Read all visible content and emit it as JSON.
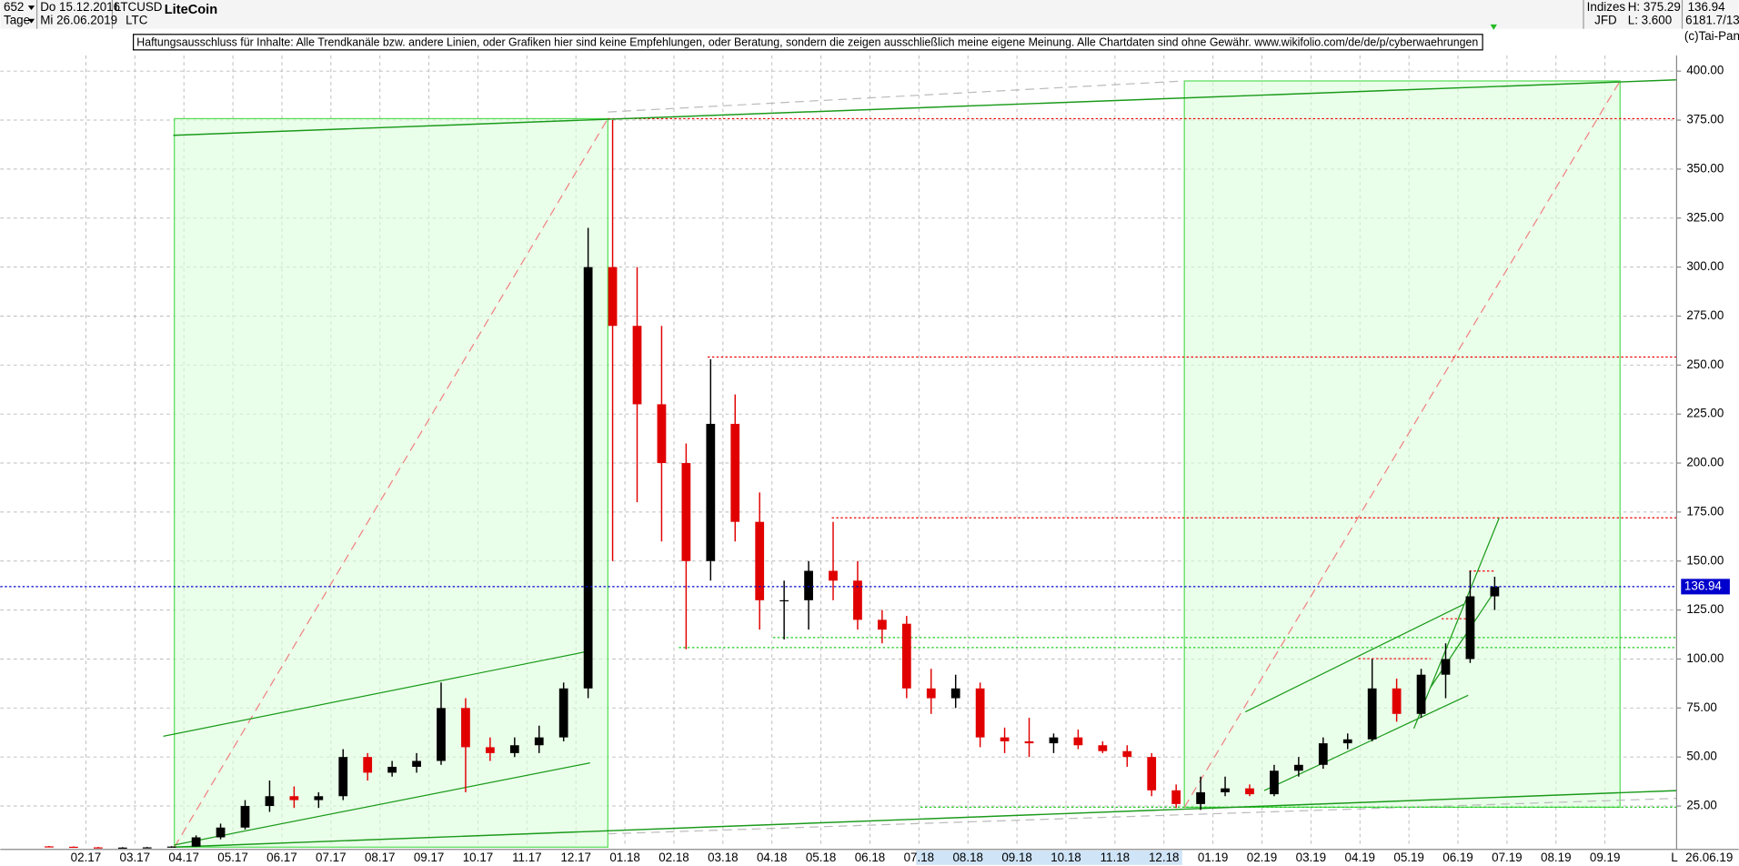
{
  "header": {
    "period": "652",
    "start_date": "Do 15.12.2016",
    "symbol": "LTCUSD",
    "name": "LiteCoin",
    "interval": "Tage",
    "end_date": "Mi 26.06.2019",
    "symbol_short": "LTC",
    "group": "Indizes",
    "source": "JFD",
    "high": "H: 375.29",
    "low": "L: 3.600",
    "last": "136.94",
    "stats": "6181.7/13",
    "copyright": "(c)Tai-Pan",
    "disclaimer": "Haftungsausschluss für Inhalte: Alle Trendkanäle bzw. andere Linien, oder Grafiken hier sind keine Empfehlungen, oder Beratung, sondern die zeigen ausschließlich meine eigene Meinung. Alle Chartdaten sind ohne Gewähr.  www.wikifolio.com/de/de/p/cyberwaehrungen"
  },
  "chart_data": {
    "type": "candlestick",
    "categories": [
      null,
      null,
      "02.17",
      null,
      "03.17",
      null,
      "04.17",
      null,
      "05.17",
      null,
      "06.17",
      null,
      "07.17",
      null,
      "08.17",
      null,
      "09.17",
      null,
      "10.17",
      null,
      "11.17",
      null,
      "12.17",
      null,
      "01.18",
      null,
      "02.18",
      null,
      "03.18",
      null,
      "04.18",
      null,
      "05.18",
      null,
      "06.18",
      null,
      "07.18",
      null,
      "08.18",
      null,
      "09.18",
      null,
      "10.18",
      null,
      "11.18",
      null,
      "12.18",
      null,
      "01.19",
      null,
      "02.19",
      null,
      "03.19",
      null,
      "04.19",
      null,
      "05.19",
      null,
      "06.19",
      null,
      "07.19",
      null,
      "08.19",
      null,
      "09.19",
      null
    ],
    "open": [
      4.4,
      4.2,
      3.9,
      3.8,
      3.8,
      3.9,
      4.3,
      9,
      14,
      25,
      30,
      28,
      30,
      50,
      42,
      45,
      48,
      75,
      55,
      52,
      56,
      60,
      85,
      300,
      270,
      230,
      200,
      150,
      220,
      170,
      130,
      130,
      145,
      140,
      120,
      118,
      85,
      80,
      85,
      60,
      58,
      57,
      60,
      56,
      53,
      50,
      33,
      26,
      32,
      34,
      31,
      43,
      46,
      57,
      59,
      85,
      72,
      92,
      100,
      132,
      null,
      null,
      null,
      null,
      null,
      null
    ],
    "high": [
      4.6,
      4.4,
      4.1,
      4.0,
      4.1,
      4.5,
      10,
      16,
      28,
      38,
      35,
      32,
      54,
      52,
      48,
      52,
      88,
      80,
      60,
      60,
      66,
      88,
      320,
      375,
      300,
      270,
      210,
      253,
      235,
      185,
      140,
      150,
      170,
      150,
      125,
      122,
      95,
      92,
      88,
      65,
      70,
      62,
      64,
      58,
      56,
      52,
      36,
      40,
      40,
      36,
      46,
      50,
      60,
      62,
      100,
      90,
      95,
      108,
      145,
      142,
      null,
      null,
      null,
      null,
      null,
      null
    ],
    "low": [
      4.0,
      3.8,
      3.7,
      3.6,
      3.6,
      3.7,
      4.2,
      8,
      13,
      22,
      24,
      24,
      28,
      38,
      40,
      42,
      46,
      32,
      48,
      50,
      52,
      58,
      80,
      150,
      180,
      160,
      105,
      140,
      160,
      115,
      110,
      115,
      130,
      115,
      108,
      80,
      72,
      75,
      55,
      52,
      50,
      52,
      54,
      52,
      45,
      30,
      24,
      23,
      30,
      30,
      30,
      40,
      44,
      54,
      58,
      68,
      70,
      80,
      98,
      125,
      null,
      null,
      null,
      null,
      null,
      null
    ],
    "close": [
      4.2,
      3.9,
      3.8,
      3.8,
      3.9,
      4.3,
      9,
      14,
      25,
      30,
      28,
      30,
      50,
      42,
      45,
      48,
      75,
      55,
      52,
      56,
      60,
      85,
      300,
      270,
      230,
      200,
      150,
      220,
      170,
      130,
      130,
      145,
      140,
      120,
      115,
      85,
      80,
      85,
      60,
      58,
      57,
      60,
      56,
      53,
      50,
      33,
      26,
      32,
      34,
      31,
      43,
      46,
      57,
      59,
      85,
      72,
      92,
      100,
      132,
      137,
      null,
      null,
      null,
      null,
      null,
      null
    ],
    "up_color": "#000000",
    "down_color": "#e00000",
    "ylim": [
      4,
      408
    ],
    "yticks": [
      {
        "value": 25,
        "label": "25.00"
      },
      {
        "value": 50,
        "label": "50.00"
      },
      {
        "value": 75,
        "label": "75.00"
      },
      {
        "value": 100,
        "label": "100.00"
      },
      {
        "value": 125,
        "label": "125.00"
      },
      {
        "value": 150,
        "label": "150.00"
      },
      {
        "value": 175,
        "label": "175.00"
      },
      {
        "value": 200,
        "label": "200.00"
      },
      {
        "value": 225,
        "label": "225.00"
      },
      {
        "value": 250,
        "label": "250.00"
      },
      {
        "value": 275,
        "label": "275.00"
      },
      {
        "value": 300,
        "label": "300.00"
      },
      {
        "value": 325,
        "label": "325.00"
      },
      {
        "value": 350,
        "label": "350.00"
      },
      {
        "value": 375,
        "label": "375.00"
      },
      {
        "value": 400,
        "label": "400.00"
      }
    ],
    "grid": true,
    "last_value": 136.94,
    "last_color": "#0000cc",
    "x_end_label": "26.06.19",
    "axis_marker": "L"
  }
}
